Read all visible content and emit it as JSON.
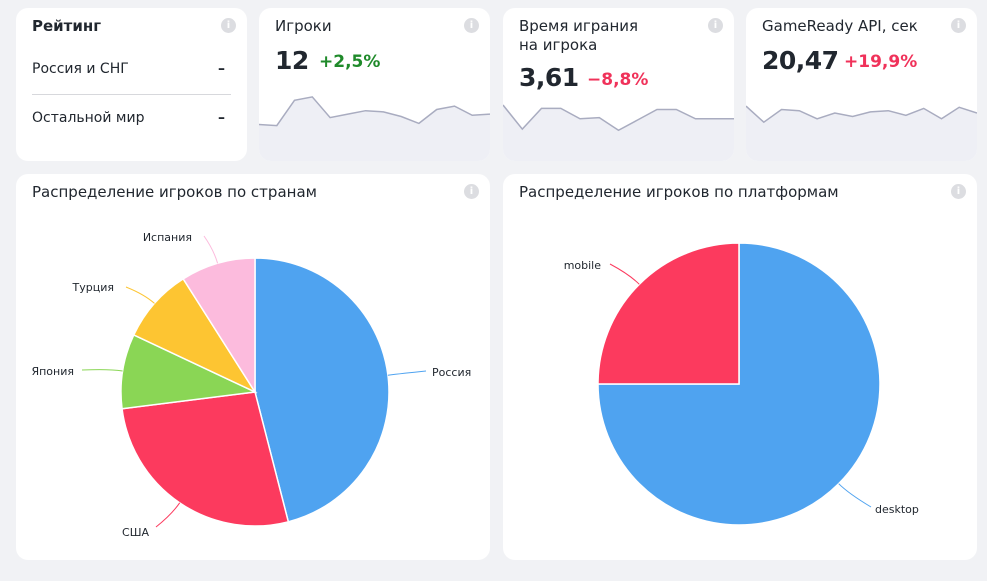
{
  "rating": {
    "title": "Рейтинг",
    "rows": [
      {
        "label": "Россия и СНГ",
        "value": "–"
      },
      {
        "label": "Остальной мир",
        "value": "–"
      }
    ]
  },
  "metrics": [
    {
      "title": "Игроки",
      "value": "12",
      "delta": "+2,5%",
      "trend": "up",
      "spark": [
        7.5,
        7.4,
        9.6,
        9.9,
        8.1,
        8.4,
        8.7,
        8.6,
        8.2,
        7.6,
        8.8,
        9.1,
        8.3,
        8.4
      ]
    },
    {
      "title_line1": "Время играния",
      "title_line2": "на игрока",
      "value": "3,61",
      "delta": "−8,8%",
      "trend": "down",
      "spark": [
        9.2,
        7.1,
        8.9,
        8.9,
        8.0,
        8.1,
        7.0,
        7.9,
        8.8,
        8.8,
        8.0,
        8.0,
        8.0
      ]
    },
    {
      "title": "GameReady API, сек",
      "value": "20,47",
      "delta": "+19,9%",
      "trend": "up_bad",
      "spark": [
        9.1,
        7.7,
        8.8,
        8.7,
        8.0,
        8.5,
        8.2,
        8.6,
        8.7,
        8.3,
        8.9,
        8.0,
        9.0,
        8.5
      ]
    }
  ],
  "colors": {
    "blue": "#4fa3f0",
    "red": "#fc3a5e",
    "green": "#8ad655",
    "yellow": "#fdc532",
    "pink": "#fcbbdd",
    "spark_line": "#a9acc0",
    "spark_fill": "#eeeff5",
    "positive": "#1f8a2a",
    "negative": "#f0325a"
  },
  "chart_data": [
    {
      "type": "pie",
      "title": "Распределение игроков по странам",
      "categories": [
        "Россия",
        "США",
        "Япония",
        "Турция",
        "Испания"
      ],
      "values": [
        46,
        27,
        9,
        9,
        9
      ],
      "colors": [
        "#4fa3f0",
        "#fc3a5e",
        "#8ad655",
        "#fdc532",
        "#fcbbdd"
      ]
    },
    {
      "type": "pie",
      "title": "Распределение игроков по платформам",
      "categories": [
        "desktop",
        "mobile"
      ],
      "values": [
        75,
        25
      ],
      "colors": [
        "#4fa3f0",
        "#fc3a5e"
      ]
    }
  ]
}
